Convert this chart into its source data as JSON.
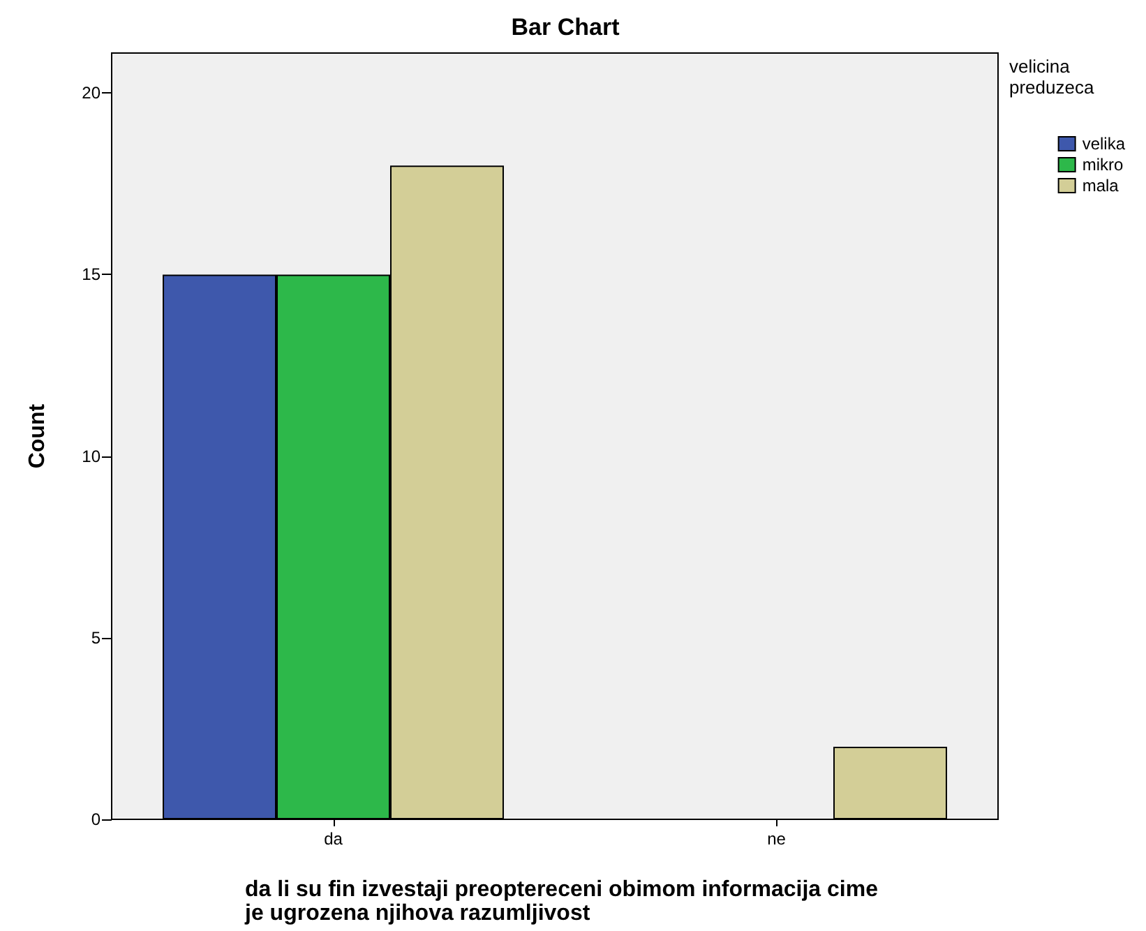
{
  "chart_data": {
    "type": "bar",
    "title": "Bar Chart",
    "xlabel": "da li su fin izvestaji preoptereceni obimom informacija cime je ugrozena njihova razumljivost",
    "ylabel": "Count",
    "legend_title": "velicina preduzeca",
    "categories": [
      "da",
      "ne"
    ],
    "series": [
      {
        "name": "velika",
        "color": "#3e58ac",
        "values": [
          15,
          0
        ]
      },
      {
        "name": "mikro",
        "color": "#2db84a",
        "values": [
          15,
          0
        ]
      },
      {
        "name": "mala",
        "color": "#d3ce97",
        "values": [
          18,
          2
        ]
      }
    ],
    "ylim": [
      0,
      21.1
    ],
    "yticks": [
      0,
      5,
      10,
      15,
      20
    ],
    "grid": false,
    "legend": "top right"
  }
}
